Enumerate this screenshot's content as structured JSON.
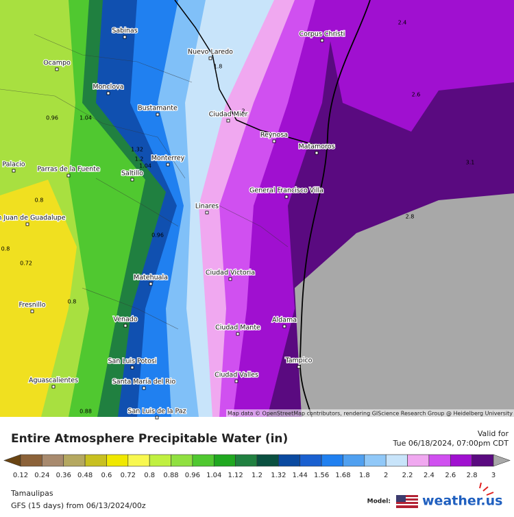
{
  "map": {
    "cities": [
      "Sabinas",
      "Nuevo Laredo",
      "Corpus Christi",
      "Ocampo",
      "Monclova",
      "Bustamante",
      "Ciudad Mier",
      "Reynosa",
      "Matamoros",
      "Monterrey",
      "Saltillo",
      "Palacio",
      "Parras de la Fuente",
      "General Francisco Villa",
      "Linares",
      "San Juan de Guadalupe",
      "Ciudad Victoria",
      "Matehuala",
      "Fresnillo",
      "Aldama",
      "Venado",
      "Ciudad Mante",
      "Tampico",
      "San Luis Potosi",
      "Aguascalientes",
      "Ciudad Valles",
      "Santa María del Rio",
      "San Luis de la Paz"
    ],
    "contour_labels": [
      2.4,
      1.8,
      2.6,
      0.96,
      1.04,
      2,
      1.32,
      1.2,
      1.04,
      3.1,
      0.8,
      2.8,
      0.96,
      0.72,
      0.8,
      0.88,
      0.8
    ],
    "attribution": "Map data © OpenStreetMap contributors, rendering GIScience Research Group @ Heidelberg University"
  },
  "legend": {
    "title": "Entire Atmosphere Precipitable Water (in)",
    "valid_label": "Valid for",
    "valid_time": "Tue 06/18/2024, 07:00pm CDT",
    "region": "Tamaulipas",
    "model_run": "GFS (15 days) from 06/13/2024/00z",
    "model_label": "Model:",
    "brand": "weather.us",
    "colorbar": {
      "labels": [
        0.12,
        0.24,
        0.36,
        0.48,
        0.6,
        0.72,
        0.8,
        0.88,
        0.96,
        1.04,
        1.12,
        1.2,
        1.32,
        1.44,
        1.56,
        1.68,
        1.8,
        2,
        2.2,
        2.4,
        2.6,
        2.8,
        3
      ],
      "colors": [
        "#6a4412",
        "#8c6239",
        "#a88a6e",
        "#b5a860",
        "#c8c020",
        "#f0e800",
        "#f8f850",
        "#c0f040",
        "#90e040",
        "#50c830",
        "#20a820",
        "#208040",
        "#0a5040",
        "#0a4aa0",
        "#1a60d0",
        "#2080f0",
        "#50a0f0",
        "#90c8f8",
        "#c8e4fa",
        "#f0a8f0",
        "#d050f0",
        "#a010d0",
        "#5a0a80",
        "#a8a8a8",
        "#ffffff"
      ]
    }
  }
}
